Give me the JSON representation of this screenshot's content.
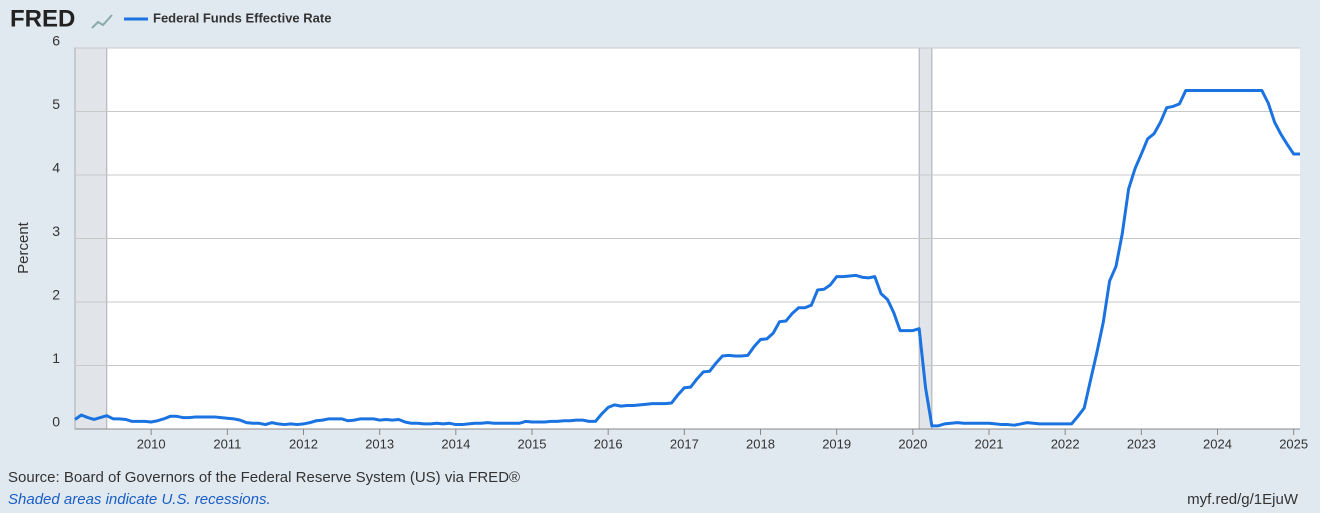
{
  "logo": "FRED",
  "source": "Source: Board of Governors of the Federal Reserve System (US) via FRED®",
  "note": "Shaded areas indicate U.S. recessions.",
  "url": "myf.red/g/1EjuW",
  "chart_data": {
    "type": "line",
    "y_label": "Percent",
    "xlim": [
      2009,
      2025.083
    ],
    "xticks": [
      2010,
      2011,
      2012,
      2013,
      2014,
      2015,
      2016,
      2017,
      2018,
      2019,
      2020,
      2021,
      2022,
      2023,
      2024,
      2025
    ],
    "ylim": [
      0,
      6
    ],
    "yticks": [
      0,
      1,
      2,
      3,
      4,
      5,
      6
    ],
    "grid": true,
    "recessions": [
      [
        2009,
        2009.417
      ],
      [
        2020.083,
        2020.25
      ]
    ],
    "x": [
      2009,
      2009.083,
      2009.167,
      2009.25,
      2009.333,
      2009.417,
      2009.5,
      2009.583,
      2009.667,
      2009.75,
      2009.833,
      2009.917,
      2010,
      2010.083,
      2010.167,
      2010.25,
      2010.333,
      2010.417,
      2010.5,
      2010.583,
      2010.667,
      2010.75,
      2010.833,
      2010.917,
      2011,
      2011.083,
      2011.167,
      2011.25,
      2011.333,
      2011.417,
      2011.5,
      2011.583,
      2011.667,
      2011.75,
      2011.833,
      2011.917,
      2012,
      2012.083,
      2012.167,
      2012.25,
      2012.333,
      2012.417,
      2012.5,
      2012.583,
      2012.667,
      2012.75,
      2012.833,
      2012.917,
      2013,
      2013.083,
      2013.167,
      2013.25,
      2013.333,
      2013.417,
      2013.5,
      2013.583,
      2013.667,
      2013.75,
      2013.833,
      2013.917,
      2014,
      2014.083,
      2014.167,
      2014.25,
      2014.333,
      2014.417,
      2014.5,
      2014.583,
      2014.667,
      2014.75,
      2014.833,
      2014.917,
      2015,
      2015.083,
      2015.167,
      2015.25,
      2015.333,
      2015.417,
      2015.5,
      2015.583,
      2015.667,
      2015.75,
      2015.833,
      2015.917,
      2016,
      2016.083,
      2016.167,
      2016.25,
      2016.333,
      2016.417,
      2016.5,
      2016.583,
      2016.667,
      2016.75,
      2016.833,
      2016.917,
      2017,
      2017.083,
      2017.167,
      2017.25,
      2017.333,
      2017.417,
      2017.5,
      2017.583,
      2017.667,
      2017.75,
      2017.833,
      2017.917,
      2018,
      2018.083,
      2018.167,
      2018.25,
      2018.333,
      2018.417,
      2018.5,
      2018.583,
      2018.667,
      2018.75,
      2018.833,
      2018.917,
      2019,
      2019.083,
      2019.167,
      2019.25,
      2019.333,
      2019.417,
      2019.5,
      2019.583,
      2019.667,
      2019.75,
      2019.833,
      2019.917,
      2020,
      2020.083,
      2020.167,
      2020.25,
      2020.333,
      2020.417,
      2020.5,
      2020.583,
      2020.667,
      2020.75,
      2020.833,
      2020.917,
      2021,
      2021.083,
      2021.167,
      2021.25,
      2021.333,
      2021.417,
      2021.5,
      2021.583,
      2021.667,
      2021.75,
      2021.833,
      2021.917,
      2022,
      2022.083,
      2022.167,
      2022.25,
      2022.333,
      2022.417,
      2022.5,
      2022.583,
      2022.667,
      2022.75,
      2022.833,
      2022.917,
      2023,
      2023.083,
      2023.167,
      2023.25,
      2023.333,
      2023.417,
      2023.5,
      2023.583,
      2023.667,
      2023.75,
      2023.833,
      2023.917,
      2024,
      2024.083,
      2024.167,
      2024.25,
      2024.333,
      2024.417,
      2024.5,
      2024.583,
      2024.667,
      2024.75,
      2024.833,
      2024.917,
      2025,
      2025.083
    ],
    "series": [
      {
        "name": "Federal Funds Effective Rate",
        "color": "#1a73e0",
        "values": [
          0.15,
          0.22,
          0.18,
          0.15,
          0.18,
          0.21,
          0.16,
          0.16,
          0.15,
          0.12,
          0.12,
          0.12,
          0.11,
          0.13,
          0.16,
          0.2,
          0.2,
          0.18,
          0.18,
          0.19,
          0.19,
          0.19,
          0.19,
          0.18,
          0.17,
          0.16,
          0.14,
          0.1,
          0.09,
          0.09,
          0.07,
          0.1,
          0.08,
          0.07,
          0.08,
          0.07,
          0.08,
          0.1,
          0.13,
          0.14,
          0.16,
          0.16,
          0.16,
          0.13,
          0.14,
          0.16,
          0.16,
          0.16,
          0.14,
          0.15,
          0.14,
          0.15,
          0.11,
          0.09,
          0.09,
          0.08,
          0.08,
          0.09,
          0.08,
          0.09,
          0.07,
          0.07,
          0.08,
          0.09,
          0.09,
          0.1,
          0.09,
          0.09,
          0.09,
          0.09,
          0.09,
          0.12,
          0.11,
          0.11,
          0.11,
          0.12,
          0.12,
          0.13,
          0.13,
          0.14,
          0.14,
          0.12,
          0.12,
          0.24,
          0.34,
          0.38,
          0.36,
          0.37,
          0.37,
          0.38,
          0.39,
          0.4,
          0.4,
          0.4,
          0.41,
          0.54,
          0.65,
          0.66,
          0.79,
          0.9,
          0.91,
          1.04,
          1.15,
          1.16,
          1.15,
          1.15,
          1.16,
          1.3,
          1.41,
          1.42,
          1.51,
          1.69,
          1.7,
          1.82,
          1.91,
          1.91,
          1.95,
          2.19,
          2.2,
          2.27,
          2.4,
          2.4,
          2.41,
          2.42,
          2.39,
          2.38,
          2.4,
          2.13,
          2.04,
          1.83,
          1.55,
          1.55,
          1.55,
          1.58,
          0.65,
          0.05,
          0.05,
          0.08,
          0.09,
          0.1,
          0.09,
          0.09,
          0.09,
          0.09,
          0.09,
          0.08,
          0.07,
          0.07,
          0.06,
          0.08,
          0.1,
          0.09,
          0.08,
          0.08,
          0.08,
          0.08,
          0.08,
          0.08,
          0.2,
          0.33,
          0.77,
          1.21,
          1.68,
          2.33,
          2.56,
          3.08,
          3.78,
          4.1,
          4.33,
          4.57,
          4.65,
          4.83,
          5.06,
          5.08,
          5.12,
          5.33,
          5.33,
          5.33,
          5.33,
          5.33,
          5.33,
          5.33,
          5.33,
          5.33,
          5.33,
          5.33,
          5.33,
          5.33,
          5.13,
          4.83,
          4.64,
          4.48,
          4.33,
          4.33
        ]
      }
    ]
  }
}
